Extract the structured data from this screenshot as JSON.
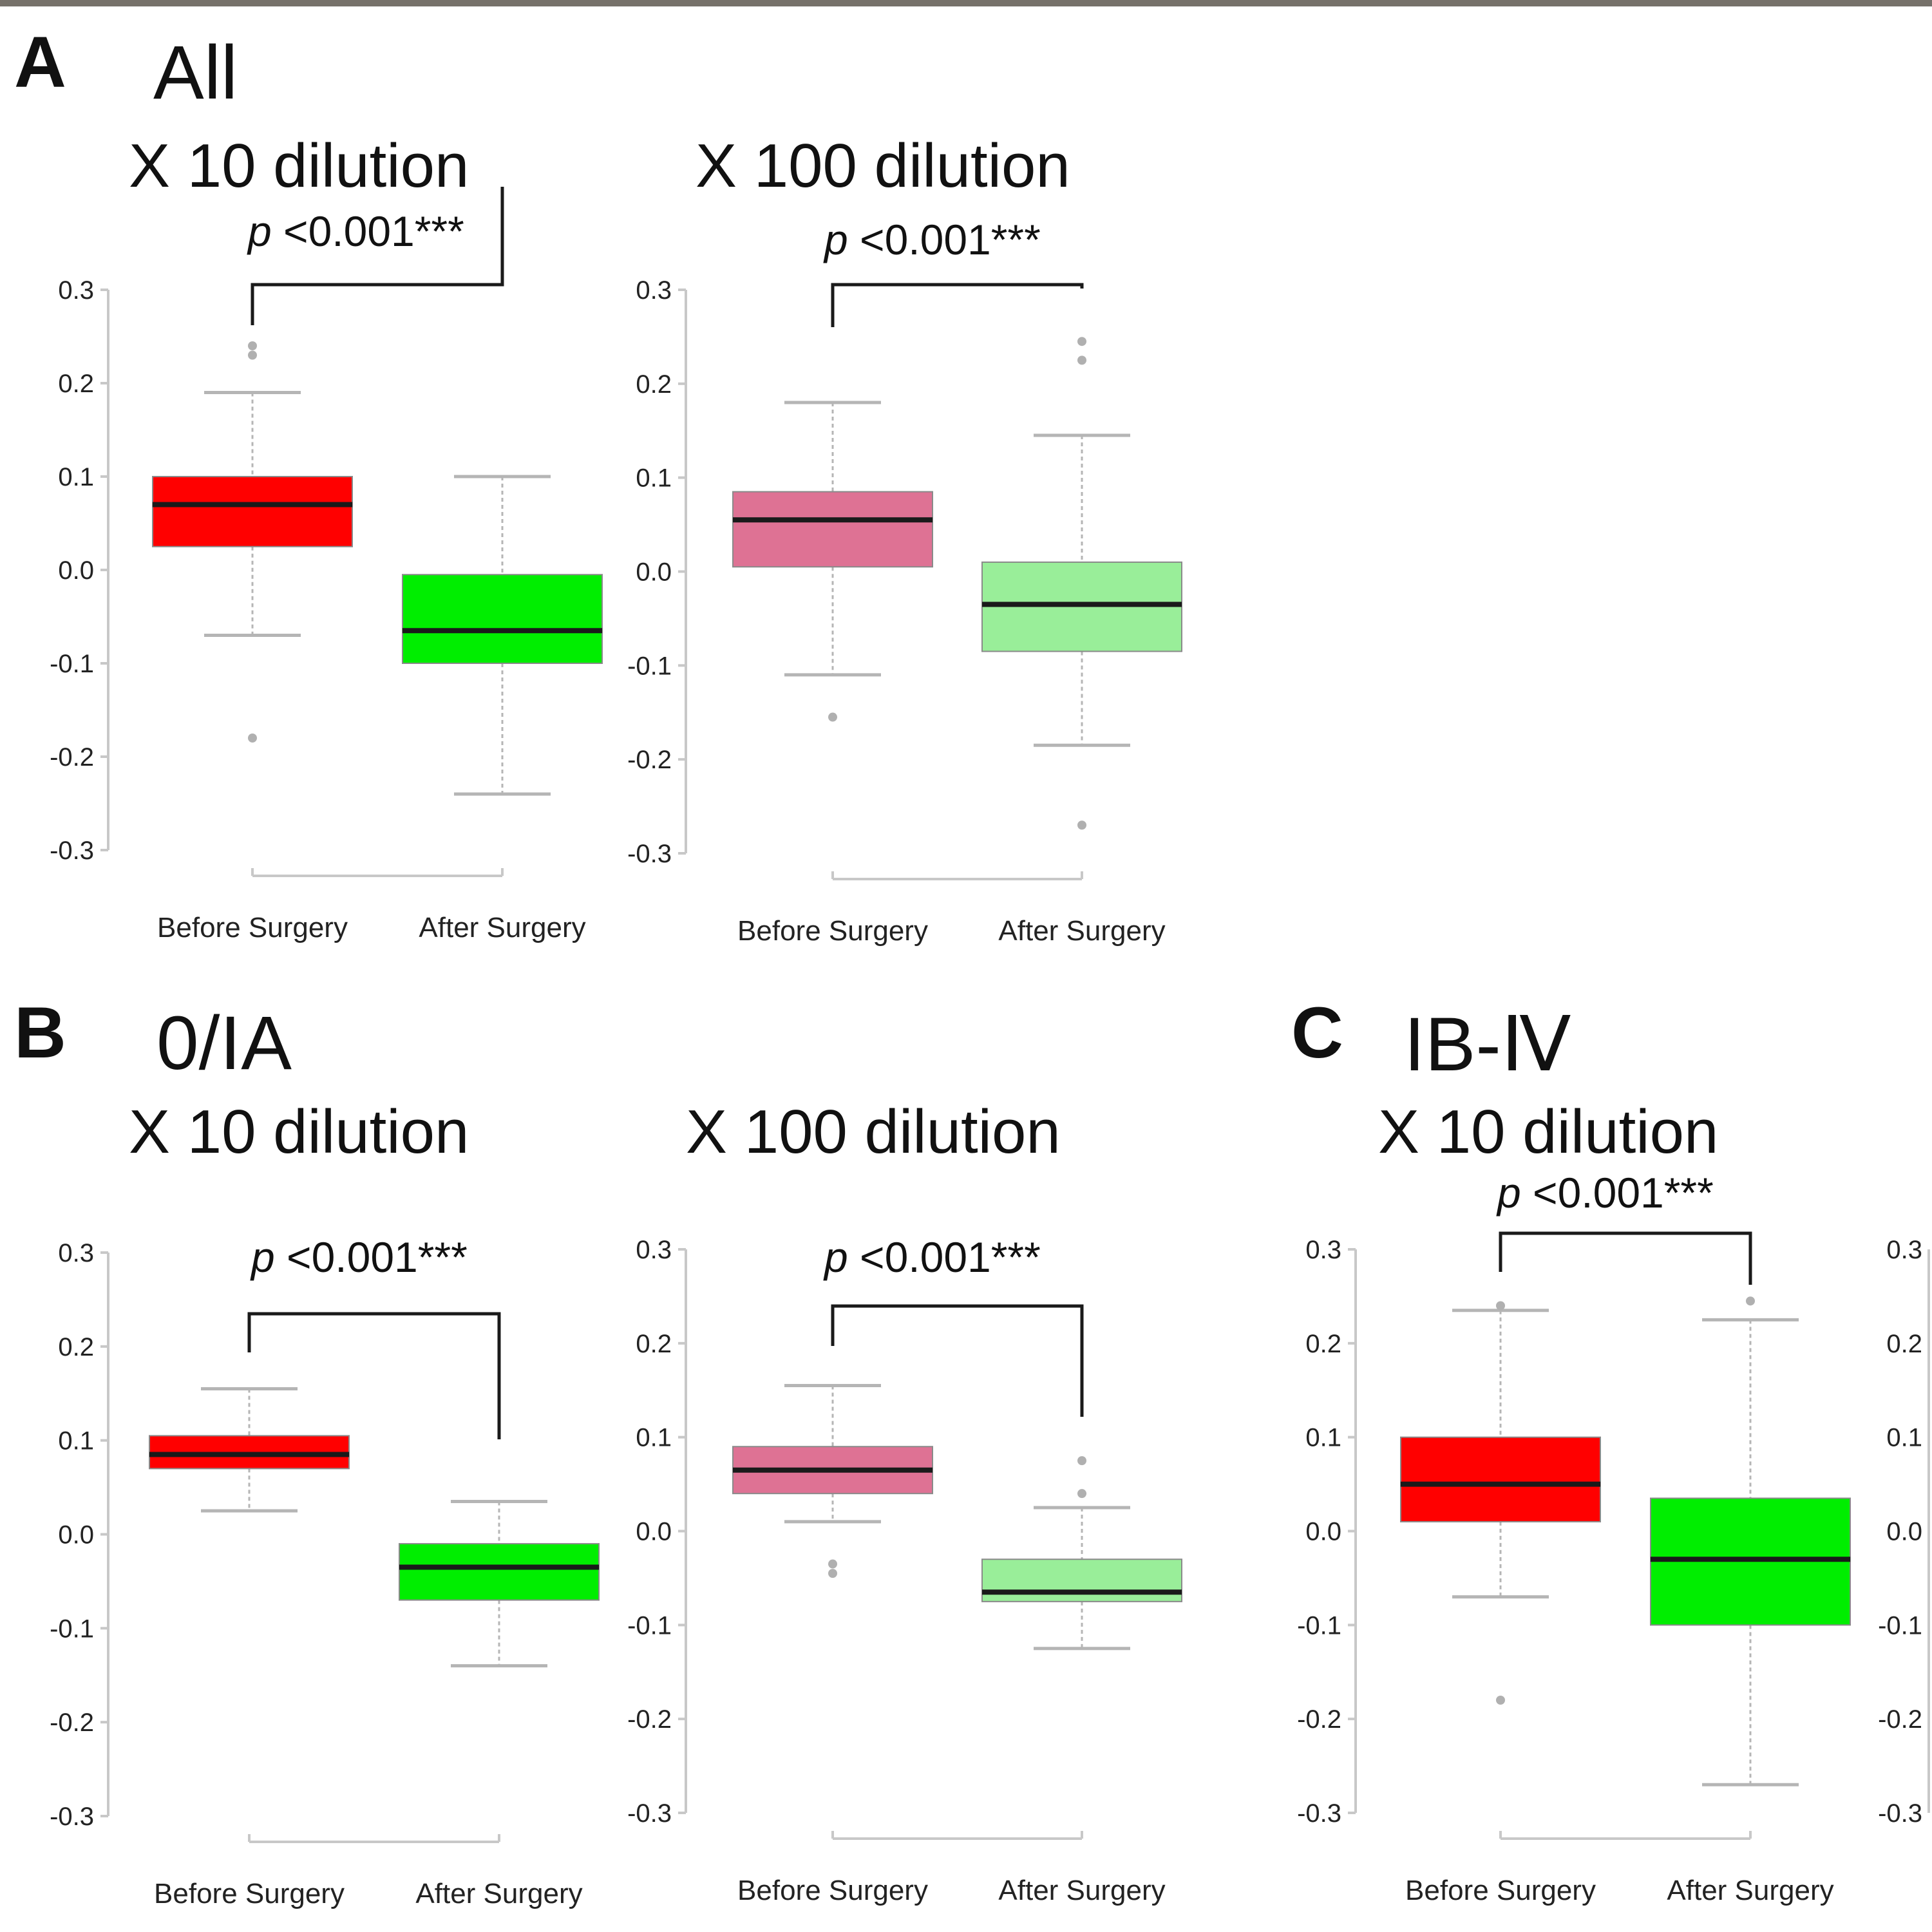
{
  "colors": {
    "before_dark": "#ff0000",
    "after_dark": "#00ee00",
    "before_light": "#de7294",
    "after_light": "#99ee99",
    "axis": "#c8c8c8",
    "whisker": "#b5b5b5"
  },
  "groups": [
    {
      "label": "A",
      "title": "All"
    },
    {
      "label": "B",
      "title": "0/IA"
    },
    {
      "label": "C",
      "title": "IB-Ⅳ"
    }
  ],
  "chart_data": [
    {
      "type": "boxplot",
      "group": 0,
      "title": "X 10 dilution",
      "categories": [
        "Before Surgery",
        "After Surgery"
      ],
      "annotation": {
        "prefix": "p",
        "text": "<0.001***"
      },
      "ylim": [
        -0.3,
        0.3
      ],
      "yticks": [
        "0.3",
        "0.2",
        "0.1",
        "0.0",
        "-0.1",
        "-0.2",
        "-0.3"
      ],
      "palette": "dark",
      "boxes": [
        {
          "whisker_low": -0.07,
          "q1": 0.025,
          "median": 0.07,
          "q3": 0.1,
          "whisker_high": 0.19,
          "outliers": [
            0.23,
            0.24,
            -0.18
          ]
        },
        {
          "whisker_low": -0.24,
          "q1": -0.1,
          "median": -0.065,
          "q3": -0.005,
          "whisker_high": 0.1,
          "outliers": []
        }
      ]
    },
    {
      "type": "boxplot",
      "group": 0,
      "title": "X 100 dilution",
      "categories": [
        "Before Surgery",
        "After Surgery"
      ],
      "annotation": {
        "prefix": "p",
        "text": "<0.001***"
      },
      "ylim": [
        -0.3,
        0.3
      ],
      "yticks": [
        "0.3",
        "0.2",
        "0.1",
        "0.0",
        "-0.1",
        "-0.2",
        "-0.3"
      ],
      "palette": "light",
      "boxes": [
        {
          "whisker_low": -0.11,
          "q1": 0.005,
          "median": 0.055,
          "q3": 0.085,
          "whisker_high": 0.18,
          "outliers": [
            -0.155
          ]
        },
        {
          "whisker_low": -0.185,
          "q1": -0.085,
          "median": -0.035,
          "q3": 0.01,
          "whisker_high": 0.145,
          "outliers": [
            0.245,
            0.225,
            -0.27
          ]
        }
      ]
    },
    {
      "type": "boxplot",
      "group": 1,
      "title": "X 10 dilution",
      "categories": [
        "Before Surgery",
        "After Surgery"
      ],
      "annotation": {
        "prefix": "p",
        "text": "<0.001***"
      },
      "ylim": [
        -0.3,
        0.3
      ],
      "yticks": [
        "0.3",
        "0.2",
        "0.1",
        "0.0",
        "-0.1",
        "-0.2",
        "-0.3"
      ],
      "palette": "dark",
      "boxes": [
        {
          "whisker_low": 0.025,
          "q1": 0.07,
          "median": 0.085,
          "q3": 0.105,
          "whisker_high": 0.155,
          "outliers": []
        },
        {
          "whisker_low": -0.14,
          "q1": -0.07,
          "median": -0.035,
          "q3": -0.01,
          "whisker_high": 0.035,
          "outliers": []
        }
      ]
    },
    {
      "type": "boxplot",
      "group": 1,
      "title": "X 100 dilution",
      "categories": [
        "Before Surgery",
        "After Surgery"
      ],
      "annotation": {
        "prefix": "p",
        "text": "<0.001***"
      },
      "ylim": [
        -0.3,
        0.3
      ],
      "yticks": [
        "0.3",
        "0.2",
        "0.1",
        "0.0",
        "-0.1",
        "-0.2",
        "-0.3"
      ],
      "palette": "light",
      "boxes": [
        {
          "whisker_low": 0.01,
          "q1": 0.04,
          "median": 0.065,
          "q3": 0.09,
          "whisker_high": 0.155,
          "outliers": [
            -0.035,
            -0.045
          ]
        },
        {
          "whisker_low": -0.125,
          "q1": -0.075,
          "median": -0.065,
          "q3": -0.03,
          "whisker_high": 0.025,
          "outliers": [
            0.075,
            0.04
          ]
        }
      ]
    },
    {
      "type": "boxplot",
      "group": 2,
      "title": "X 10 dilution",
      "categories": [
        "Before Surgery",
        "After Surgery"
      ],
      "annotation": {
        "prefix": "p",
        "text": "<0.001***"
      },
      "ylim": [
        -0.3,
        0.3
      ],
      "yticks": [
        "0.3",
        "0.2",
        "0.1",
        "0.0",
        "-0.1",
        "-0.2",
        "-0.3"
      ],
      "palette": "dark",
      "boxes": [
        {
          "whisker_low": -0.07,
          "q1": 0.01,
          "median": 0.05,
          "q3": 0.1,
          "whisker_high": 0.235,
          "outliers": [
            0.24,
            -0.18
          ]
        },
        {
          "whisker_low": -0.27,
          "q1": -0.1,
          "median": -0.03,
          "q3": 0.035,
          "whisker_high": 0.225,
          "outliers": [
            0.245
          ]
        }
      ]
    }
  ],
  "partial_panel": {
    "yticks": [
      "0.3",
      "0.2",
      "0.1",
      "0.0",
      "-0.1",
      "-0.2",
      "-0.3"
    ]
  }
}
